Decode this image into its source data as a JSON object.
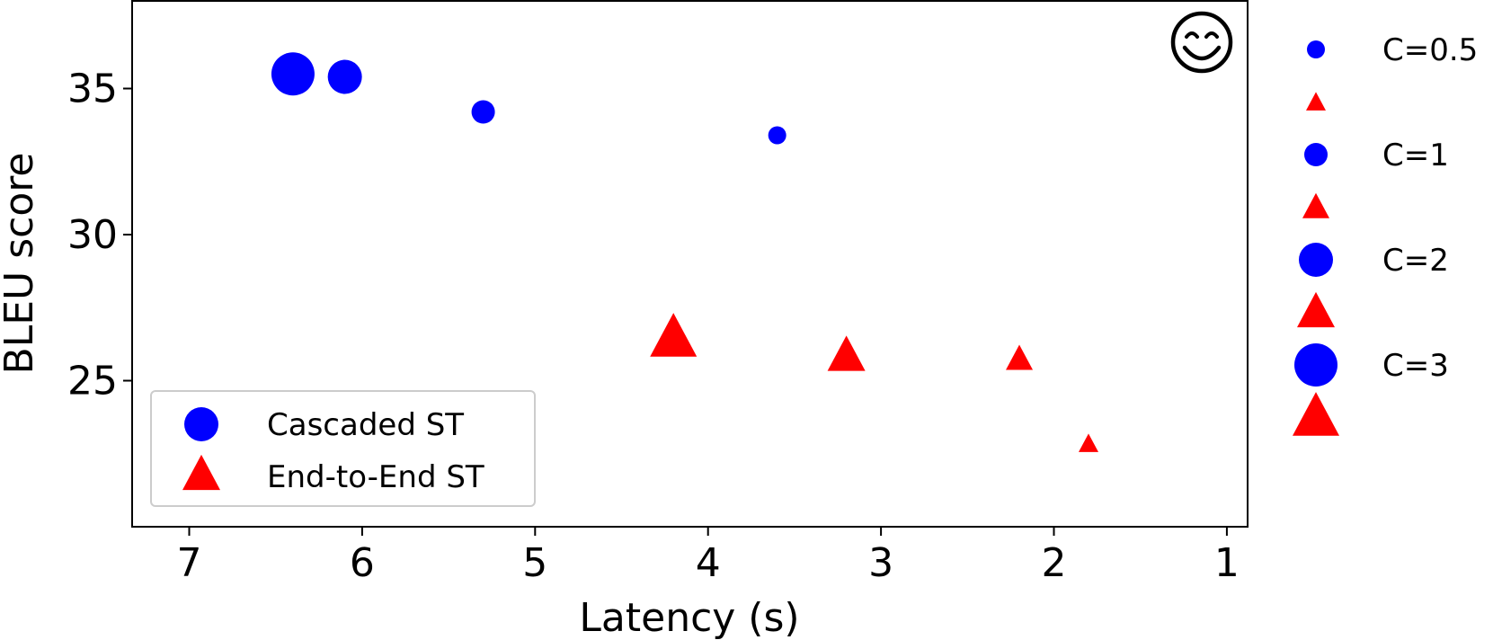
{
  "chart_data": {
    "type": "scatter",
    "xlabel": "Latency (s)",
    "ylabel": "BLEU score",
    "xlim": [
      7.33,
      0.88
    ],
    "ylim": [
      20.0,
      38.0
    ],
    "x_inverted": true,
    "xticks": [
      7,
      6,
      5,
      4,
      3,
      2,
      1
    ],
    "yticks": [
      25,
      30,
      35
    ],
    "grid": false,
    "series": [
      {
        "name": "Cascaded ST",
        "marker": "circle",
        "color": "#0000ff",
        "points": [
          {
            "x": 6.4,
            "y": 35.5,
            "C": 3
          },
          {
            "x": 6.1,
            "y": 35.4,
            "C": 2
          },
          {
            "x": 5.3,
            "y": 34.2,
            "C": 1
          },
          {
            "x": 3.6,
            "y": 33.4,
            "C": 0.5
          }
        ]
      },
      {
        "name": "End-to-End ST",
        "marker": "triangle",
        "color": "#ff0000",
        "points": [
          {
            "x": 4.2,
            "y": 26.4,
            "C": 3
          },
          {
            "x": 3.2,
            "y": 25.8,
            "C": 2
          },
          {
            "x": 2.2,
            "y": 25.7,
            "C": 1
          },
          {
            "x": 1.8,
            "y": 22.8,
            "C": 0.5
          }
        ]
      }
    ],
    "legend": {
      "placement": "lower-left",
      "entries": [
        "Cascaded ST",
        "End-to-End ST"
      ]
    },
    "size_legend": {
      "placement": "outside-right",
      "entries": [
        {
          "label": "C=0.5",
          "C": 0.5
        },
        {
          "label": "C=1",
          "C": 1
        },
        {
          "label": "C=2",
          "C": 2
        },
        {
          "label": "C=3",
          "C": 3
        }
      ]
    },
    "annotation": {
      "symbol": "😊",
      "icon": "smiling-face-icon",
      "placement": "top-right"
    }
  }
}
